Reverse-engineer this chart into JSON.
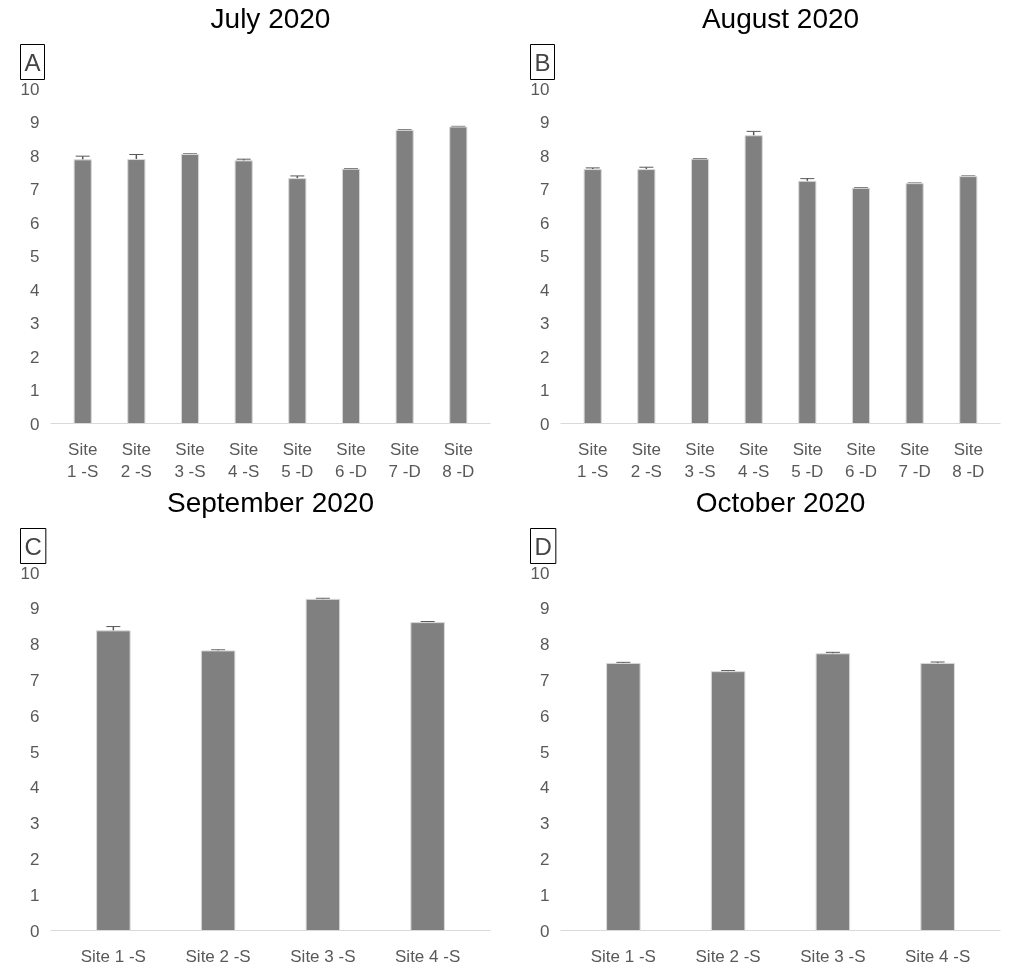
{
  "chart_data": [
    {
      "type": "bar",
      "title": "July 2020",
      "annotations": [
        "A"
      ],
      "categories": [
        "Site 1 -S",
        "Site 2 -S",
        "Site 3 -S",
        "Site 4 -S",
        "Site 5 -D",
        "Site 6 -D",
        "Site 7 -D",
        "Site 8 -D"
      ],
      "values": [
        7.87,
        7.88,
        8.03,
        7.84,
        7.31,
        7.59,
        8.75,
        8.85
      ],
      "errors": [
        0.11,
        0.15,
        0.02,
        0.05,
        0.08,
        0.02,
        0.02,
        0.02
      ],
      "color": "#808080",
      "ylim": [
        0,
        10
      ],
      "yticks": [
        0,
        1,
        2,
        3,
        4,
        5,
        6,
        7,
        8,
        9,
        10
      ],
      "grid": false
    },
    {
      "type": "bar",
      "title": "August 2020",
      "annotations": [
        "B"
      ],
      "categories": [
        "Site 1 -S",
        "Site 2 -S",
        "Site 3 -S",
        "Site 4 -S",
        "Site 5 -D",
        "Site 6 -D",
        "Site 7 -D",
        "Site 8 -D"
      ],
      "values": [
        7.58,
        7.58,
        7.89,
        8.59,
        7.23,
        7.02,
        7.16,
        7.37
      ],
      "errors": [
        0.05,
        0.07,
        0.02,
        0.13,
        0.08,
        0.02,
        0.02,
        0.02
      ],
      "color": "#808080",
      "ylim": [
        0,
        10
      ],
      "yticks": [
        0,
        1,
        2,
        3,
        4,
        5,
        6,
        7,
        8,
        9,
        10
      ],
      "grid": false
    },
    {
      "type": "bar",
      "title": "September 2020",
      "annotations": [
        "C"
      ],
      "categories": [
        "Site 1 -S",
        "Site 2 -S",
        "Site 3 -S",
        "Site 4 -S"
      ],
      "values": [
        8.37,
        7.81,
        9.25,
        8.6
      ],
      "errors": [
        0.12,
        0.03,
        0.03,
        0.03
      ],
      "color": "#808080",
      "ylim": [
        0,
        10
      ],
      "yticks": [
        0,
        1,
        2,
        3,
        4,
        5,
        6,
        7,
        8,
        9,
        10
      ],
      "grid": false
    },
    {
      "type": "bar",
      "title": "October 2020",
      "annotations": [
        "D"
      ],
      "categories": [
        "Site 1 -S",
        "Site 2 -S",
        "Site 3 -S",
        "Site 4 -S"
      ],
      "values": [
        7.46,
        7.23,
        7.73,
        7.46
      ],
      "errors": [
        0.03,
        0.03,
        0.04,
        0.04
      ],
      "color": "#808080",
      "ylim": [
        0,
        10
      ],
      "yticks": [
        0,
        1,
        2,
        3,
        4,
        5,
        6,
        7,
        8,
        9,
        10
      ],
      "grid": false
    }
  ]
}
